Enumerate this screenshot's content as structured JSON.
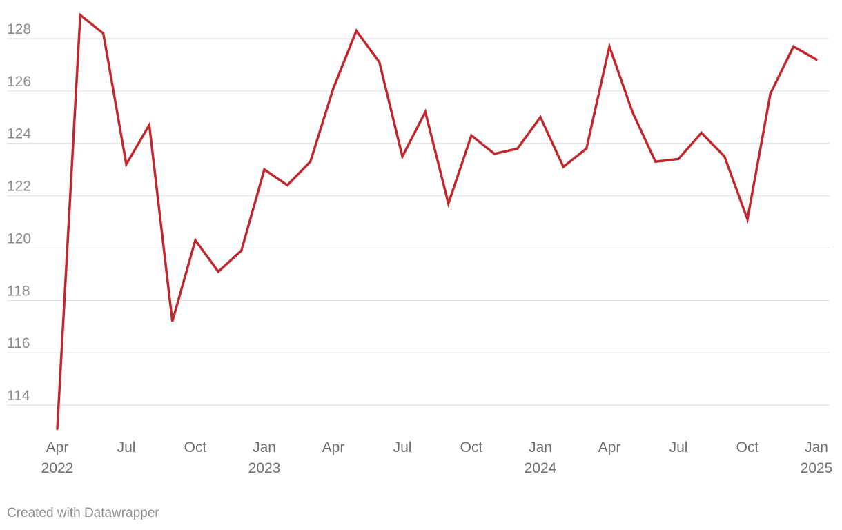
{
  "chart_data": {
    "type": "line",
    "title": "",
    "xlabel": "",
    "ylabel": "",
    "x": [
      "2022-04",
      "2022-05",
      "2022-06",
      "2022-07",
      "2022-08",
      "2022-09",
      "2022-10",
      "2022-11",
      "2022-12",
      "2023-01",
      "2023-02",
      "2023-03",
      "2023-04",
      "2023-05",
      "2023-06",
      "2023-07",
      "2023-08",
      "2023-09",
      "2023-10",
      "2023-11",
      "2023-12",
      "2024-01",
      "2024-02",
      "2024-03",
      "2024-04",
      "2024-05",
      "2024-06",
      "2024-07",
      "2024-08",
      "2024-09",
      "2024-10",
      "2024-11",
      "2024-12",
      "2025-01"
    ],
    "series": [
      {
        "color": "#c0282d",
        "values": [
          113.1,
          128.9,
          128.2,
          123.2,
          124.7,
          117.2,
          120.3,
          119.1,
          119.9,
          123.0,
          122.4,
          123.3,
          126.1,
          128.3,
          127.1,
          123.5,
          125.2,
          121.7,
          124.3,
          123.6,
          123.8,
          125.0,
          123.1,
          123.8,
          127.7,
          125.2,
          123.3,
          123.4,
          124.4,
          123.5,
          121.1,
          125.9,
          127.7,
          127.2
        ]
      }
    ],
    "ylim": [
      113,
      129
    ],
    "yticks": [
      "114",
      "116",
      "118",
      "120",
      "122",
      "124",
      "126",
      "128"
    ],
    "xticks": [
      {
        "date": "2022-04",
        "label": "Apr",
        "year": "2022"
      },
      {
        "date": "2022-07",
        "label": "Jul",
        "year": ""
      },
      {
        "date": "2022-10",
        "label": "Oct",
        "year": ""
      },
      {
        "date": "2023-01",
        "label": "Jan",
        "year": "2023"
      },
      {
        "date": "2023-04",
        "label": "Apr",
        "year": ""
      },
      {
        "date": "2023-07",
        "label": "Jul",
        "year": ""
      },
      {
        "date": "2023-10",
        "label": "Oct",
        "year": ""
      },
      {
        "date": "2024-01",
        "label": "Jan",
        "year": "2024"
      },
      {
        "date": "2024-04",
        "label": "Apr",
        "year": ""
      },
      {
        "date": "2024-07",
        "label": "Jul",
        "year": ""
      },
      {
        "date": "2024-10",
        "label": "Oct",
        "year": ""
      },
      {
        "date": "2025-01",
        "label": "Jan",
        "year": "2025"
      }
    ],
    "grid": true,
    "legend": "none"
  },
  "credit": "Created with Datawrapper"
}
